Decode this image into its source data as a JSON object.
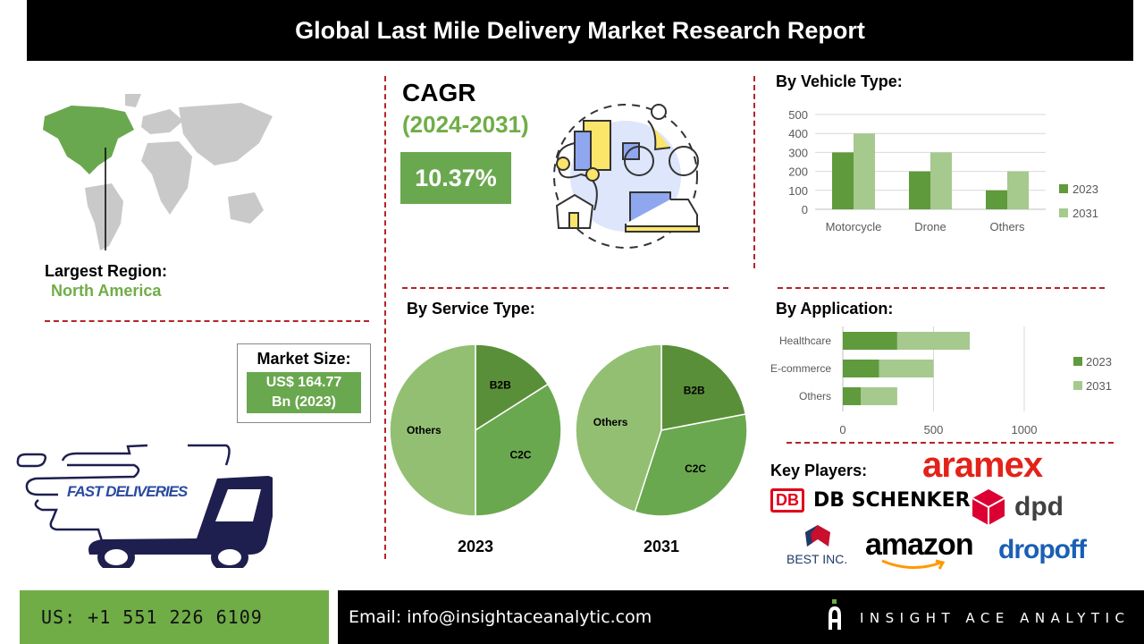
{
  "title": "Global Last Mile Delivery Market Research Report",
  "region": {
    "label": "Largest Region:",
    "value": "North America"
  },
  "market_size": {
    "label": "Market Size:",
    "line1": "US$ 164.77",
    "line2": "Bn (2023)"
  },
  "truck_logo_text": "FAST DELIVERIES",
  "cagr": {
    "label": "CAGR",
    "period": "(2024-2031)",
    "value": "10.37%"
  },
  "colors": {
    "series_2023": "#5f9a3c",
    "series_2031": "#a6c98e",
    "accent_green": "#70ad47",
    "divider_red": "#b5242a"
  },
  "chart_data": [
    {
      "type": "bar",
      "title": "By Vehicle Type:",
      "categories": [
        "Motorcycle",
        "Drone",
        "Others"
      ],
      "series": [
        {
          "name": "2023",
          "values": [
            300,
            200,
            100
          ]
        },
        {
          "name": "2031",
          "values": [
            400,
            300,
            200
          ]
        }
      ],
      "ylim": [
        0,
        500
      ],
      "yticks": [
        "0",
        "100",
        "200",
        "300",
        "400",
        "500"
      ],
      "grid": true,
      "legend": "right"
    },
    {
      "type": "pie",
      "title": "By Service Type:",
      "pies": [
        {
          "label": "2023",
          "slices": [
            {
              "name": "B2B",
              "value": 16
            },
            {
              "name": "C2C",
              "value": 34
            },
            {
              "name": "Others",
              "value": 50
            }
          ]
        },
        {
          "label": "2031",
          "slices": [
            {
              "name": "B2B",
              "value": 22
            },
            {
              "name": "C2C",
              "value": 33
            },
            {
              "name": "Others",
              "value": 45
            }
          ]
        }
      ]
    },
    {
      "type": "bar",
      "orientation": "horizontal-stacked",
      "title": "By Application:",
      "categories": [
        "Healthcare",
        "E-commerce",
        "Others"
      ],
      "series": [
        {
          "name": "2023",
          "values": [
            300,
            200,
            100
          ]
        },
        {
          "name": "2031",
          "values": [
            400,
            300,
            200
          ]
        }
      ],
      "xlim": [
        0,
        1300
      ],
      "xticks": [
        "0",
        "500",
        "1000"
      ],
      "grid": true,
      "legend": "right"
    }
  ],
  "key_players": {
    "label": "Key Players:",
    "logos": [
      "aramex",
      "DB SCHENKER",
      "dpd",
      "BEST INC.",
      "amazon",
      "dropoff"
    ]
  },
  "footer": {
    "phone": "US: +1 551 226 6109",
    "email": "Email: info@insightaceanalytic.com",
    "brand": "INSIGHT ACE ANALYTIC"
  }
}
